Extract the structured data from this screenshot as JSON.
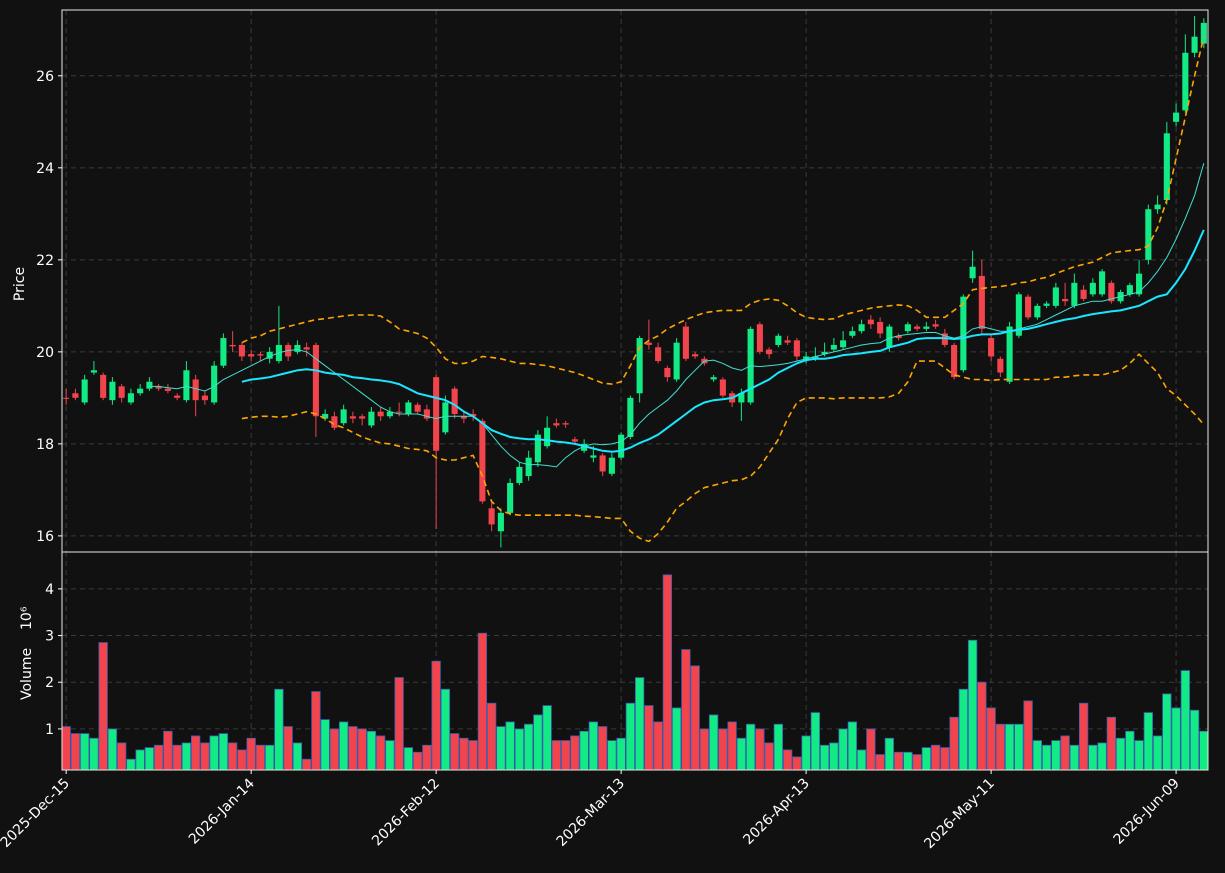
{
  "chart_data": [
    {
      "type": "candlestick",
      "ylabel": "Price",
      "ylim": [
        15.65,
        27.43
      ],
      "yticks": [
        16,
        18,
        20,
        22,
        24,
        26
      ],
      "xlim": [
        -0.45,
        123.45
      ],
      "grid": true,
      "up_color": "#12ea85",
      "down_color": "#f2444c",
      "open": [
        19.0,
        19.1,
        18.9,
        19.55,
        19.5,
        18.95,
        19.25,
        18.9,
        19.1,
        19.2,
        19.25,
        19.2,
        19.05,
        18.95,
        19.4,
        19.05,
        18.9,
        19.7,
        20.15,
        20.15,
        19.95,
        19.95,
        19.85,
        19.8,
        20.15,
        20.0,
        20.1,
        20.15,
        18.55,
        18.6,
        18.45,
        18.6,
        18.6,
        18.4,
        18.7,
        18.6,
        18.7,
        18.65,
        18.85,
        18.75,
        19.45,
        18.25,
        19.2,
        18.6,
        18.65,
        18.5,
        16.6,
        16.1,
        16.5,
        17.15,
        17.3,
        17.6,
        17.95,
        18.45,
        18.45,
        18.1,
        17.85,
        17.7,
        17.75,
        17.35,
        17.7,
        18.15,
        19.1,
        20.2,
        20.1,
        19.65,
        19.4,
        20.55,
        19.95,
        19.85,
        19.4,
        19.4,
        19.1,
        18.9,
        18.9,
        20.6,
        20.05,
        20.15,
        20.25,
        20.25,
        19.85,
        19.85,
        19.95,
        20.05,
        20.1,
        20.35,
        20.45,
        20.7,
        20.65,
        20.1,
        20.35,
        20.45,
        20.55,
        20.5,
        20.6,
        20.4,
        20.15,
        19.6,
        21.6,
        21.65,
        20.3,
        19.85,
        19.35,
        20.35,
        21.2,
        20.75,
        21.0,
        21.0,
        21.15,
        21.0,
        21.35,
        21.25,
        21.25,
        21.5,
        21.1,
        21.25,
        21.25,
        22.0,
        23.1,
        23.3,
        25.0,
        25.25,
        26.5,
        26.7
      ],
      "high": [
        19.2,
        19.2,
        19.5,
        19.8,
        19.55,
        19.45,
        19.3,
        19.2,
        19.3,
        19.45,
        19.3,
        19.3,
        19.1,
        19.8,
        19.5,
        19.15,
        19.8,
        20.4,
        20.45,
        20.2,
        20.05,
        20.0,
        20.1,
        21.0,
        20.2,
        20.25,
        20.2,
        20.2,
        18.75,
        18.7,
        18.85,
        18.7,
        18.65,
        18.8,
        18.8,
        18.8,
        18.9,
        18.95,
        18.9,
        18.85,
        19.5,
        19.05,
        19.25,
        18.7,
        18.75,
        18.55,
        16.75,
        16.6,
        17.25,
        17.6,
        17.85,
        18.3,
        18.6,
        18.55,
        18.5,
        18.15,
        18.1,
        17.95,
        17.8,
        17.8,
        18.25,
        19.05,
        20.35,
        20.7,
        20.2,
        19.7,
        20.3,
        20.65,
        20.0,
        19.9,
        19.5,
        19.45,
        19.15,
        19.2,
        20.55,
        20.65,
        20.1,
        20.4,
        20.35,
        20.3,
        20.0,
        20.1,
        20.2,
        20.3,
        20.45,
        20.55,
        20.7,
        20.8,
        20.75,
        20.6,
        20.4,
        20.65,
        20.6,
        20.65,
        20.7,
        20.5,
        20.2,
        21.25,
        22.2,
        22.0,
        20.4,
        19.9,
        20.65,
        21.3,
        21.25,
        21.05,
        21.1,
        21.5,
        21.5,
        21.7,
        21.45,
        21.6,
        21.8,
        21.55,
        21.35,
        21.5,
        22.0,
        23.2,
        23.4,
        25.0,
        25.4,
        26.9,
        27.3,
        27.25
      ],
      "low": [
        18.85,
        18.95,
        18.85,
        19.5,
        18.95,
        18.85,
        18.9,
        18.85,
        19.05,
        19.15,
        19.15,
        19.1,
        18.95,
        18.9,
        18.6,
        18.85,
        18.85,
        19.65,
        20.0,
        19.8,
        19.8,
        19.8,
        19.75,
        19.75,
        19.8,
        19.95,
        19.9,
        18.15,
        18.5,
        18.3,
        18.4,
        18.45,
        18.4,
        18.35,
        18.5,
        18.55,
        18.6,
        18.6,
        18.65,
        18.5,
        16.15,
        18.2,
        18.55,
        18.45,
        18.5,
        16.7,
        16.1,
        15.75,
        16.45,
        17.1,
        17.2,
        17.5,
        17.9,
        18.35,
        18.35,
        18.0,
        17.8,
        17.6,
        17.3,
        17.3,
        17.65,
        18.1,
        18.9,
        20.05,
        19.75,
        19.35,
        19.35,
        19.8,
        19.85,
        19.7,
        19.35,
        19.0,
        18.8,
        18.5,
        18.85,
        19.95,
        19.85,
        20.1,
        20.15,
        19.8,
        19.75,
        19.8,
        19.9,
        20.0,
        20.05,
        20.3,
        20.4,
        20.5,
        20.3,
        20.0,
        20.25,
        20.4,
        20.45,
        20.45,
        20.5,
        20.1,
        19.4,
        19.55,
        21.5,
        20.4,
        19.8,
        19.45,
        19.3,
        20.3,
        20.7,
        20.7,
        20.95,
        20.95,
        21.0,
        20.95,
        21.1,
        21.2,
        21.2,
        21.05,
        21.05,
        21.2,
        21.2,
        21.9,
        23.0,
        23.2,
        24.9,
        25.2,
        26.4,
        26.6
      ],
      "close": [
        18.98,
        19.0,
        19.4,
        19.6,
        19.0,
        19.35,
        19.0,
        19.1,
        19.2,
        19.35,
        19.2,
        19.15,
        19.0,
        19.6,
        18.95,
        18.95,
        19.7,
        20.3,
        20.12,
        19.9,
        19.9,
        19.92,
        20.0,
        20.15,
        19.9,
        20.15,
        20.05,
        18.6,
        18.65,
        18.35,
        18.75,
        18.55,
        18.55,
        18.7,
        18.6,
        18.7,
        18.68,
        18.9,
        18.7,
        18.55,
        17.85,
        18.9,
        18.65,
        18.55,
        18.6,
        16.75,
        16.25,
        16.5,
        17.15,
        17.5,
        17.7,
        18.2,
        18.35,
        18.4,
        18.42,
        18.05,
        18.0,
        17.75,
        17.4,
        17.7,
        18.2,
        19.0,
        20.3,
        20.15,
        19.8,
        19.45,
        20.2,
        19.85,
        19.9,
        19.75,
        19.45,
        19.05,
        18.9,
        19.1,
        20.5,
        20.0,
        19.95,
        20.35,
        20.2,
        19.9,
        19.9,
        19.9,
        20.0,
        20.15,
        20.25,
        20.45,
        20.6,
        20.6,
        20.4,
        20.55,
        20.3,
        20.6,
        20.5,
        20.55,
        20.55,
        20.15,
        19.45,
        21.2,
        21.85,
        20.5,
        19.9,
        19.55,
        20.55,
        21.25,
        20.75,
        21.0,
        21.05,
        21.4,
        21.1,
        21.5,
        21.15,
        21.5,
        21.75,
        21.1,
        21.3,
        21.45,
        21.7,
        23.1,
        23.2,
        24.75,
        25.2,
        26.5,
        26.85,
        27.15
      ],
      "series": [
        {
          "color": "#ffa500",
          "width": 1.6,
          "dash": "6 4",
          "values": [
            null,
            null,
            null,
            null,
            null,
            null,
            null,
            null,
            null,
            null,
            null,
            null,
            null,
            null,
            null,
            null,
            null,
            null,
            null,
            20.2,
            20.3,
            20.35,
            20.45,
            20.5,
            20.55,
            20.6,
            20.65,
            20.7,
            20.72,
            20.75,
            20.78,
            20.8,
            20.8,
            20.8,
            20.78,
            20.65,
            20.5,
            20.45,
            20.4,
            20.3,
            20.1,
            19.85,
            19.75,
            19.75,
            19.8,
            19.9,
            19.88,
            19.85,
            19.8,
            19.75,
            19.75,
            19.72,
            19.7,
            19.65,
            19.6,
            19.55,
            19.48,
            19.4,
            19.32,
            19.3,
            19.35,
            19.7,
            20.1,
            20.25,
            20.35,
            20.5,
            20.6,
            20.7,
            20.78,
            20.85,
            20.88,
            20.9,
            20.9,
            20.9,
            21.05,
            21.12,
            21.15,
            21.12,
            21.0,
            20.85,
            20.75,
            20.72,
            20.7,
            20.72,
            20.8,
            20.85,
            20.9,
            20.95,
            20.98,
            21.0,
            21.02,
            21.0,
            20.9,
            20.75,
            20.75,
            20.75,
            20.9,
            21.05,
            21.35,
            21.38,
            21.4,
            21.42,
            21.45,
            21.5,
            21.52,
            21.58,
            21.62,
            21.7,
            21.78,
            21.85,
            21.9,
            21.95,
            22.05,
            22.15,
            22.18,
            22.2,
            22.22,
            22.3,
            22.7,
            23.3,
            24.2,
            25.1,
            26.0,
            26.85
          ]
        },
        {
          "color": "#ffa500",
          "width": 1.6,
          "dash": "6 4",
          "values": [
            null,
            null,
            null,
            null,
            null,
            null,
            null,
            null,
            null,
            null,
            null,
            null,
            null,
            null,
            null,
            null,
            null,
            null,
            null,
            18.55,
            18.58,
            18.6,
            18.6,
            18.58,
            18.6,
            18.65,
            18.7,
            18.65,
            18.55,
            18.42,
            18.35,
            18.25,
            18.15,
            18.08,
            18.02,
            18.0,
            17.95,
            17.9,
            17.88,
            17.85,
            17.7,
            17.65,
            17.65,
            17.7,
            17.75,
            17.3,
            16.75,
            16.55,
            16.48,
            16.45,
            16.45,
            16.45,
            16.45,
            16.45,
            16.45,
            16.45,
            16.43,
            16.42,
            16.4,
            16.38,
            16.38,
            16.1,
            15.95,
            15.88,
            16.05,
            16.3,
            16.6,
            16.75,
            16.92,
            17.05,
            17.1,
            17.15,
            17.2,
            17.22,
            17.3,
            17.5,
            17.8,
            18.1,
            18.55,
            18.9,
            19.0,
            19.0,
            19.0,
            18.98,
            19.0,
            19.0,
            19.0,
            19.0,
            19.0,
            19.02,
            19.1,
            19.35,
            19.8,
            19.8,
            19.8,
            19.65,
            19.5,
            19.45,
            19.4,
            19.4,
            19.38,
            19.4,
            19.4,
            19.4,
            19.4,
            19.4,
            19.4,
            19.45,
            19.45,
            19.48,
            19.5,
            19.5,
            19.5,
            19.55,
            19.6,
            19.75,
            19.95,
            19.75,
            19.55,
            19.2,
            19.05,
            18.85,
            18.65,
            18.42
          ]
        },
        {
          "color": "#40e0d0",
          "width": 1,
          "dash": "",
          "values": [
            null,
            null,
            null,
            null,
            null,
            null,
            null,
            null,
            null,
            19.25,
            19.25,
            19.22,
            19.2,
            19.25,
            19.2,
            19.15,
            19.25,
            19.4,
            19.5,
            19.6,
            19.7,
            19.8,
            19.9,
            19.98,
            20.03,
            20.05,
            20.0,
            19.85,
            19.7,
            19.55,
            19.4,
            19.25,
            19.1,
            18.95,
            18.8,
            18.7,
            18.65,
            18.65,
            18.65,
            18.6,
            18.55,
            18.6,
            18.6,
            18.6,
            18.6,
            18.45,
            18.2,
            17.95,
            17.75,
            17.6,
            17.55,
            17.55,
            17.53,
            17.5,
            17.7,
            17.85,
            17.95,
            18.0,
            17.98,
            18.0,
            18.05,
            18.2,
            18.45,
            18.65,
            18.8,
            18.95,
            19.15,
            19.4,
            19.6,
            19.8,
            19.82,
            19.75,
            19.65,
            19.6,
            19.7,
            19.68,
            19.7,
            19.72,
            19.75,
            19.8,
            19.85,
            19.9,
            19.95,
            20.0,
            20.05,
            20.1,
            20.15,
            20.18,
            20.2,
            20.3,
            20.35,
            20.38,
            20.4,
            20.42,
            20.42,
            20.35,
            20.3,
            20.35,
            20.5,
            20.55,
            20.5,
            20.45,
            20.45,
            20.5,
            20.55,
            20.6,
            20.7,
            20.8,
            20.9,
            21.0,
            21.05,
            21.1,
            21.1,
            21.15,
            21.2,
            21.25,
            21.3,
            21.5,
            21.75,
            22.05,
            22.45,
            22.9,
            23.4,
            24.1
          ]
        },
        {
          "color": "#19e6ff",
          "width": 2,
          "dash": "",
          "values": [
            null,
            null,
            null,
            null,
            null,
            null,
            null,
            null,
            null,
            null,
            null,
            null,
            null,
            null,
            null,
            null,
            null,
            null,
            null,
            19.35,
            19.4,
            19.42,
            19.45,
            19.5,
            19.55,
            19.6,
            19.62,
            19.6,
            19.55,
            19.52,
            19.5,
            19.45,
            19.43,
            19.4,
            19.38,
            19.35,
            19.3,
            19.2,
            19.1,
            19.05,
            19.0,
            18.95,
            18.85,
            18.7,
            18.6,
            18.45,
            18.3,
            18.22,
            18.15,
            18.12,
            18.1,
            18.1,
            18.08,
            18.05,
            18.03,
            18.0,
            17.95,
            17.9,
            17.85,
            17.83,
            17.85,
            17.92,
            18.02,
            18.1,
            18.2,
            18.35,
            18.5,
            18.65,
            18.8,
            18.9,
            18.95,
            18.97,
            19.0,
            19.1,
            19.2,
            19.3,
            19.4,
            19.55,
            19.65,
            19.75,
            19.82,
            19.85,
            19.85,
            19.88,
            19.93,
            19.95,
            19.97,
            20.0,
            20.02,
            20.1,
            20.15,
            20.2,
            20.28,
            20.3,
            20.3,
            20.3,
            20.28,
            20.3,
            20.35,
            20.38,
            20.38,
            20.4,
            20.45,
            20.48,
            20.5,
            20.55,
            20.6,
            20.65,
            20.7,
            20.73,
            20.78,
            20.82,
            20.85,
            20.88,
            20.9,
            20.95,
            21.0,
            21.1,
            21.2,
            21.25,
            21.5,
            21.8,
            22.2,
            22.65
          ]
        }
      ]
    },
    {
      "type": "bar",
      "ylabel": "Volume",
      "ylabel_scale": "10⁶",
      "ylim": [
        0.12,
        4.79
      ],
      "yticks": [
        1,
        2,
        3,
        4
      ],
      "xlim": [
        -0.45,
        123.45
      ],
      "grid": true,
      "edge_color": "#3a5fb0",
      "xticks": [
        {
          "value": 0,
          "label": "2025-Dec-15"
        },
        {
          "value": 20,
          "label": "2026-Jan-14"
        },
        {
          "value": 40,
          "label": "2026-Feb-12"
        },
        {
          "value": 60,
          "label": "2026-Mar-13"
        },
        {
          "value": 80,
          "label": "2026-Apr-13"
        },
        {
          "value": 100,
          "label": "2026-May-11"
        },
        {
          "value": 120,
          "label": "2026-Jun-09"
        }
      ],
      "values": [
        1.05,
        0.9,
        0.9,
        0.8,
        2.85,
        1.0,
        0.7,
        0.35,
        0.55,
        0.6,
        0.65,
        0.95,
        0.65,
        0.7,
        0.85,
        0.7,
        0.85,
        0.9,
        0.7,
        0.55,
        0.8,
        0.65,
        0.65,
        1.85,
        1.05,
        0.7,
        0.35,
        1.8,
        1.2,
        1.0,
        1.15,
        1.05,
        1.0,
        0.95,
        0.85,
        0.75,
        2.1,
        0.6,
        0.5,
        0.65,
        2.45,
        1.85,
        0.9,
        0.8,
        0.75,
        3.05,
        1.55,
        1.05,
        1.15,
        1.0,
        1.1,
        1.3,
        1.5,
        0.75,
        0.75,
        0.85,
        0.95,
        1.15,
        1.05,
        0.75,
        0.8,
        1.55,
        2.1,
        1.5,
        1.15,
        4.3,
        1.45,
        2.7,
        2.35,
        1.0,
        1.3,
        1.0,
        1.15,
        0.8,
        1.1,
        1.0,
        0.7,
        1.1,
        0.55,
        0.4,
        0.85,
        1.35,
        0.65,
        0.7,
        1.0,
        1.15,
        0.55,
        1.0,
        0.45,
        0.8,
        0.5,
        0.5,
        0.45,
        0.6,
        0.65,
        0.6,
        1.25,
        1.85,
        2.9,
        2.0,
        1.45,
        1.1,
        1.1,
        1.1,
        1.6,
        0.75,
        0.65,
        0.75,
        0.85,
        0.65,
        1.55,
        0.65,
        0.7,
        1.25,
        0.8,
        0.95,
        0.75,
        1.35,
        0.85,
        1.75,
        1.45,
        2.25,
        1.4,
        0.95
      ]
    }
  ]
}
